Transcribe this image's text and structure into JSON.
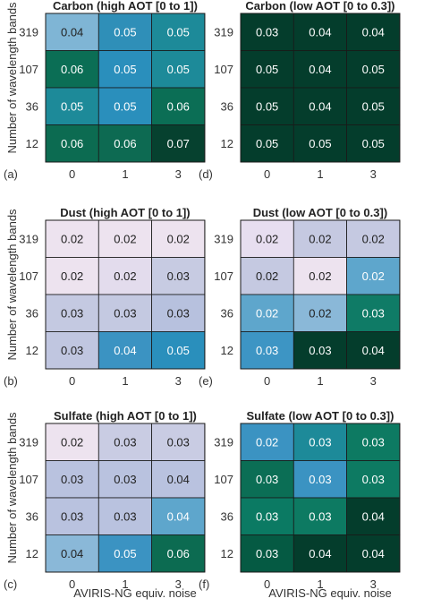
{
  "figure": {
    "ylabel": "Number of wavelength bands",
    "xlabel": "AVIRIS-NG equiv. noise"
  },
  "chart_data": [
    {
      "type": "heatmap",
      "panel_label": "(a)",
      "title": "Carbon (high AOT [0 to 1])",
      "x": [
        "0",
        "1",
        "3"
      ],
      "y": [
        "319",
        "107",
        "36",
        "12"
      ],
      "values": [
        [
          0.04,
          0.05,
          0.05
        ],
        [
          0.06,
          0.05,
          0.05
        ],
        [
          0.05,
          0.05,
          0.06
        ],
        [
          0.06,
          0.06,
          0.07
        ]
      ],
      "fills": [
        [
          "#7fb5d5",
          "#2f8fb8",
          "#1d8a99"
        ],
        [
          "#0b6e55",
          "#2a8fbc",
          "#1d8a99"
        ],
        [
          "#1d8a99",
          "#2a8fbc",
          "#0b6e55"
        ],
        [
          "#0c6b51",
          "#0d6a52",
          "#06412f"
        ]
      ]
    },
    {
      "type": "heatmap",
      "panel_label": "(d)",
      "title": "Carbon (low AOT [0 to 0.3])",
      "x": [
        "0",
        "1",
        "3"
      ],
      "y": [
        "319",
        "107",
        "36",
        "12"
      ],
      "values": [
        [
          0.03,
          0.04,
          0.04
        ],
        [
          0.05,
          0.04,
          0.05
        ],
        [
          0.05,
          0.04,
          0.05
        ],
        [
          0.05,
          0.05,
          0.05
        ]
      ],
      "fills": [
        [
          "#043d2c",
          "#043d2c",
          "#043d2c"
        ],
        [
          "#043d2c",
          "#043d2c",
          "#043d2c"
        ],
        [
          "#043d2c",
          "#043d2c",
          "#043d2c"
        ],
        [
          "#043d2c",
          "#043d2c",
          "#043d2c"
        ]
      ]
    },
    {
      "type": "heatmap",
      "panel_label": "(b)",
      "title": "Dust (high AOT [0 to 1])",
      "x": [
        "0",
        "1",
        "3"
      ],
      "y": [
        "319",
        "107",
        "36",
        "12"
      ],
      "values": [
        [
          0.02,
          0.02,
          0.02
        ],
        [
          0.02,
          0.02,
          0.03
        ],
        [
          0.03,
          0.03,
          0.03
        ],
        [
          0.03,
          0.04,
          0.05
        ]
      ],
      "fills": [
        [
          "#ede3ef",
          "#ede3ef",
          "#ede3ef"
        ],
        [
          "#ede3ef",
          "#e3dced",
          "#c7cbe2"
        ],
        [
          "#c4c9e1",
          "#c4c9e1",
          "#b7c1de"
        ],
        [
          "#c0c6e0",
          "#3b93c2",
          "#2a8fbc"
        ]
      ]
    },
    {
      "type": "heatmap",
      "panel_label": "(e)",
      "title": "Dust (low AOT [0 to 0.3])",
      "x": [
        "0",
        "1",
        "3"
      ],
      "y": [
        "319",
        "107",
        "36",
        "12"
      ],
      "values": [
        [
          0.02,
          0.02,
          0.02
        ],
        [
          0.02,
          0.02,
          0.02
        ],
        [
          0.02,
          0.02,
          0.03
        ],
        [
          0.03,
          0.03,
          0.04
        ]
      ],
      "fills": [
        [
          "#e7def0",
          "#c5c9e1",
          "#c5c9e1"
        ],
        [
          "#c5c9e1",
          "#ede3ef",
          "#5ea6cc"
        ],
        [
          "#5ea6cc",
          "#8ab8d8",
          "#0f7b66"
        ],
        [
          "#3d95c4",
          "#043d2c",
          "#043d2c"
        ]
      ]
    },
    {
      "type": "heatmap",
      "panel_label": "(c)",
      "title": "Sulfate (high AOT [0 to 1])",
      "x": [
        "0",
        "1",
        "3"
      ],
      "y": [
        "319",
        "107",
        "36",
        "12"
      ],
      "values": [
        [
          0.02,
          0.03,
          0.03
        ],
        [
          0.03,
          0.03,
          0.04
        ],
        [
          0.03,
          0.03,
          0.04
        ],
        [
          0.04,
          0.05,
          0.06
        ]
      ],
      "fills": [
        [
          "#ede3ef",
          "#c9cce3",
          "#c9cce3"
        ],
        [
          "#b9c2df",
          "#b9c2df",
          "#b9c2df"
        ],
        [
          "#b9c2df",
          "#b9c2df",
          "#5ea6cc"
        ],
        [
          "#8ab8d8",
          "#3b93c2",
          "#0c6b51"
        ]
      ]
    },
    {
      "type": "heatmap",
      "panel_label": "(f)",
      "title": "Sulfate (low AOT [0 to 0.3])",
      "x": [
        "0",
        "1",
        "3"
      ],
      "y": [
        "319",
        "107",
        "36",
        "12"
      ],
      "values": [
        [
          0.02,
          0.03,
          0.03
        ],
        [
          0.03,
          0.03,
          0.03
        ],
        [
          0.03,
          0.03,
          0.04
        ],
        [
          0.03,
          0.04,
          0.04
        ]
      ],
      "fills": [
        [
          "#3b93c2",
          "#1d8a99",
          "#0d7a62"
        ],
        [
          "#0b6e55",
          "#3b93c2",
          "#0d7a62"
        ],
        [
          "#0b7a63",
          "#0d7a62",
          "#043d2c"
        ],
        [
          "#055a43",
          "#043d2c",
          "#043d2c"
        ]
      ]
    }
  ]
}
